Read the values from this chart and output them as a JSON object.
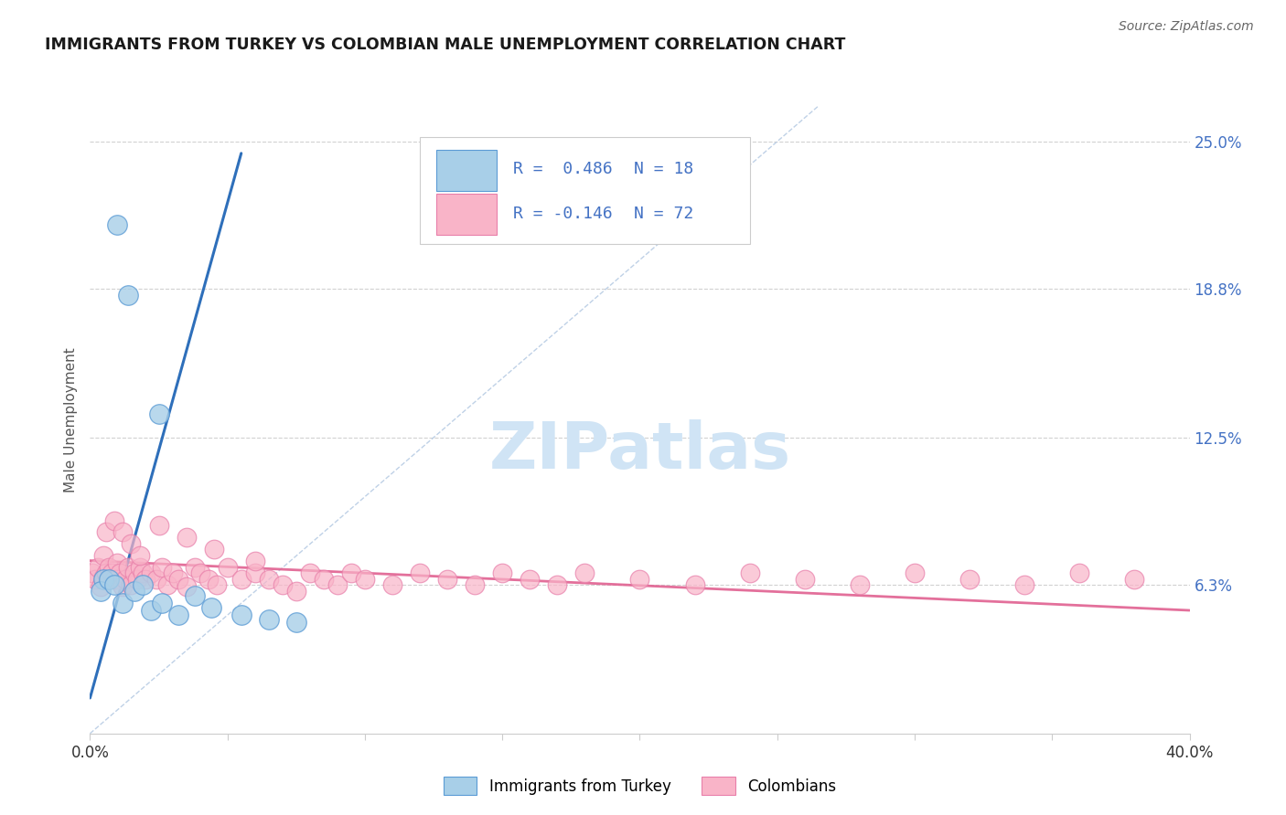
{
  "title": "IMMIGRANTS FROM TURKEY VS COLOMBIAN MALE UNEMPLOYMENT CORRELATION CHART",
  "source": "Source: ZipAtlas.com",
  "ylabel": "Male Unemployment",
  "xlim": [
    0.0,
    0.4
  ],
  "ylim": [
    0.0,
    0.265
  ],
  "yticks": [
    0.063,
    0.125,
    0.188,
    0.25
  ],
  "ytick_labels": [
    "6.3%",
    "12.5%",
    "18.8%",
    "25.0%"
  ],
  "xtick_positions": [
    0.0,
    0.05,
    0.1,
    0.15,
    0.2,
    0.25,
    0.3,
    0.35,
    0.4
  ],
  "xtick_labels": [
    "0.0%",
    "",
    "",
    "",
    "",
    "",
    "",
    "",
    "40.0%"
  ],
  "legend_r1": "R =  0.486",
  "legend_n1": "N = 18",
  "legend_r2": "R = -0.146",
  "legend_n2": "N = 72",
  "color_turkey": "#a8cfe8",
  "color_colombia": "#f9b4c8",
  "color_turkey_edge": "#5b9bd5",
  "color_colombia_edge": "#e87faa",
  "color_turkey_line": "#2e6fba",
  "color_colombia_line": "#e06090",
  "color_diag_line": "#b8cce4",
  "background_color": "#ffffff",
  "title_color": "#1a1a1a",
  "axis_label_color": "#555555",
  "right_tick_color": "#4472c4",
  "source_color": "#666666",
  "watermark_color": "#d0e4f5",
  "turkey_x": [
    0.01,
    0.014,
    0.025,
    0.005,
    0.004,
    0.007,
    0.009,
    0.012,
    0.016,
    0.019,
    0.022,
    0.026,
    0.032,
    0.038,
    0.044,
    0.055,
    0.065,
    0.075
  ],
  "turkey_y": [
    0.215,
    0.185,
    0.135,
    0.065,
    0.06,
    0.065,
    0.063,
    0.055,
    0.06,
    0.063,
    0.052,
    0.055,
    0.05,
    0.058,
    0.053,
    0.05,
    0.048,
    0.047
  ],
  "colombia_x": [
    0.001,
    0.002,
    0.003,
    0.004,
    0.005,
    0.005,
    0.006,
    0.007,
    0.007,
    0.008,
    0.009,
    0.01,
    0.01,
    0.011,
    0.012,
    0.013,
    0.014,
    0.015,
    0.016,
    0.017,
    0.018,
    0.019,
    0.02,
    0.022,
    0.024,
    0.026,
    0.028,
    0.03,
    0.032,
    0.035,
    0.038,
    0.04,
    0.043,
    0.046,
    0.05,
    0.055,
    0.06,
    0.065,
    0.07,
    0.075,
    0.08,
    0.085,
    0.09,
    0.095,
    0.1,
    0.11,
    0.12,
    0.13,
    0.14,
    0.15,
    0.16,
    0.17,
    0.18,
    0.2,
    0.22,
    0.24,
    0.26,
    0.28,
    0.3,
    0.32,
    0.34,
    0.36,
    0.38,
    0.006,
    0.009,
    0.012,
    0.015,
    0.018,
    0.025,
    0.035,
    0.045,
    0.06
  ],
  "colombia_y": [
    0.068,
    0.065,
    0.07,
    0.062,
    0.066,
    0.075,
    0.068,
    0.065,
    0.07,
    0.068,
    0.065,
    0.072,
    0.065,
    0.068,
    0.062,
    0.065,
    0.07,
    0.063,
    0.068,
    0.065,
    0.07,
    0.068,
    0.065,
    0.068,
    0.065,
    0.07,
    0.063,
    0.068,
    0.065,
    0.062,
    0.07,
    0.068,
    0.065,
    0.063,
    0.07,
    0.065,
    0.068,
    0.065,
    0.063,
    0.06,
    0.068,
    0.065,
    0.063,
    0.068,
    0.065,
    0.063,
    0.068,
    0.065,
    0.063,
    0.068,
    0.065,
    0.063,
    0.068,
    0.065,
    0.063,
    0.068,
    0.065,
    0.063,
    0.068,
    0.065,
    0.063,
    0.068,
    0.065,
    0.085,
    0.09,
    0.085,
    0.08,
    0.075,
    0.088,
    0.083,
    0.078,
    0.073
  ],
  "turkey_trend_x": [
    0.0,
    0.055
  ],
  "turkey_trend_y": [
    0.015,
    0.245
  ],
  "colombia_trend_x": [
    0.0,
    0.4
  ],
  "colombia_trend_y": [
    0.073,
    0.052
  ],
  "diag_line_x": [
    0.0,
    0.265
  ],
  "diag_line_y": [
    0.0,
    0.265
  ]
}
